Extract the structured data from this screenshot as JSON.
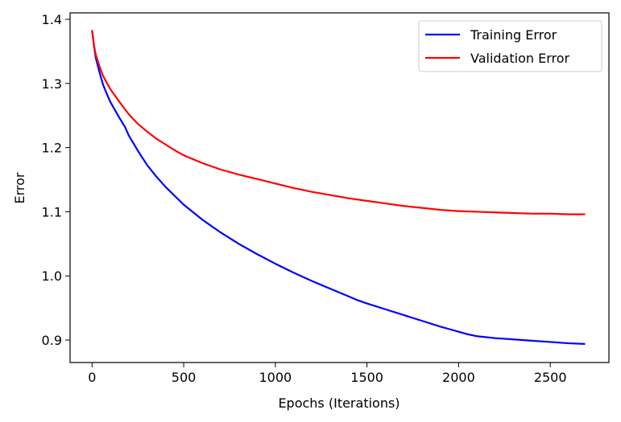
{
  "chart_data": {
    "type": "line",
    "title": "",
    "xlabel": "Epochs (Iterations)",
    "ylabel": "Error",
    "xlim": [
      -120,
      2820
    ],
    "ylim": [
      0.865,
      1.41
    ],
    "x_ticks": [
      0,
      500,
      1000,
      1500,
      2000,
      2500
    ],
    "x_tick_labels": [
      "0",
      "500",
      "1000",
      "1500",
      "2000",
      "2500"
    ],
    "y_ticks": [
      0.9,
      1.0,
      1.1,
      1.2,
      1.3,
      1.4
    ],
    "y_tick_labels": [
      "0.9",
      "1.0",
      "1.1",
      "1.2",
      "1.3",
      "1.4"
    ],
    "grid": false,
    "legend_position": "top-right",
    "series": [
      {
        "name": "Training Error",
        "color": "#0000ff",
        "x": [
          0,
          10,
          20,
          40,
          60,
          80,
          100,
          150,
          180,
          200,
          250,
          300,
          350,
          400,
          450,
          500,
          600,
          700,
          800,
          900,
          1000,
          1100,
          1200,
          1300,
          1400,
          1450,
          1500,
          1600,
          1700,
          1800,
          1900,
          1950,
          2000,
          2050,
          2100,
          2200,
          2300,
          2400,
          2500,
          2600,
          2690
        ],
        "y": [
          1.383,
          1.36,
          1.34,
          1.318,
          1.298,
          1.284,
          1.271,
          1.246,
          1.232,
          1.219,
          1.195,
          1.173,
          1.155,
          1.139,
          1.125,
          1.111,
          1.088,
          1.068,
          1.05,
          1.034,
          1.019,
          1.005,
          0.992,
          0.98,
          0.968,
          0.962,
          0.957,
          0.948,
          0.939,
          0.93,
          0.921,
          0.917,
          0.913,
          0.909,
          0.906,
          0.903,
          0.901,
          0.899,
          0.897,
          0.895,
          0.894
        ]
      },
      {
        "name": "Validation Error",
        "color": "#ff0000",
        "x": [
          0,
          10,
          20,
          40,
          60,
          80,
          100,
          150,
          200,
          250,
          300,
          350,
          400,
          450,
          500,
          600,
          700,
          800,
          900,
          1000,
          1100,
          1200,
          1300,
          1400,
          1500,
          1600,
          1700,
          1800,
          1900,
          2000,
          2100,
          2200,
          2300,
          2400,
          2500,
          2600,
          2690
        ],
        "y": [
          1.383,
          1.36,
          1.345,
          1.327,
          1.312,
          1.301,
          1.291,
          1.271,
          1.252,
          1.237,
          1.225,
          1.214,
          1.205,
          1.196,
          1.188,
          1.176,
          1.166,
          1.158,
          1.151,
          1.144,
          1.137,
          1.131,
          1.126,
          1.121,
          1.117,
          1.113,
          1.109,
          1.106,
          1.103,
          1.101,
          1.1,
          1.099,
          1.098,
          1.097,
          1.097,
          1.096,
          1.096
        ]
      }
    ]
  }
}
